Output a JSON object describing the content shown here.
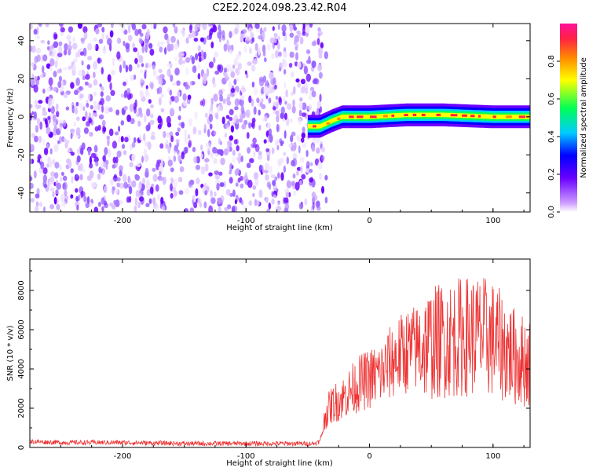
{
  "title": "C2E2.2024.098.23.42.R04",
  "colors": {
    "snr_line": "#ee3333",
    "colormap": [
      "#ffffff",
      "#cc99ff",
      "#6a00ff",
      "#0000ff",
      "#00ccff",
      "#00ff55",
      "#ffff00",
      "#ff8800",
      "#ff2244",
      "#ff1199"
    ]
  },
  "chart_data": [
    {
      "type": "heatmap",
      "xlabel": "Height of straight line (km)",
      "ylabel": "Frequency (Hz)",
      "xlim": [
        -275,
        130
      ],
      "ylim": [
        -50,
        49
      ],
      "x_ticks": [
        -200,
        -100,
        0,
        100
      ],
      "y_ticks": [
        -40,
        -20,
        0,
        20,
        40
      ],
      "noise_region_x": [
        -275,
        -40
      ],
      "signal_track": [
        {
          "x": -50,
          "y": -5
        },
        {
          "x": -40,
          "y": -5
        },
        {
          "x": -30,
          "y": -2
        },
        {
          "x": -22,
          "y": 0
        },
        {
          "x": 0,
          "y": 0
        },
        {
          "x": 30,
          "y": 1
        },
        {
          "x": 60,
          "y": 1
        },
        {
          "x": 100,
          "y": 0
        },
        {
          "x": 130,
          "y": 0
        }
      ],
      "colorbar": {
        "label": "Normalized spectral amplitude",
        "ticks": [
          "0.0",
          "0.2",
          "0.4",
          "0.6",
          "0.8"
        ],
        "range": [
          0,
          1
        ]
      }
    },
    {
      "type": "line",
      "xlabel": "Height of straight line (km)",
      "ylabel": "SNR (10 * v/v)",
      "xlim": [
        -275,
        130
      ],
      "ylim": [
        0,
        9600
      ],
      "x_ticks": [
        -200,
        -100,
        0,
        100
      ],
      "y_ticks": [
        0,
        2000,
        4000,
        6000,
        8000
      ],
      "series": [
        {
          "x": [
            -275,
            -250,
            -200,
            -150,
            -100,
            -60,
            -45,
            -40,
            -35,
            -30,
            -20,
            -10,
            0,
            10,
            20,
            30,
            40,
            50,
            60,
            70,
            80,
            90,
            100,
            110,
            120,
            130
          ],
          "values": [
            300,
            250,
            250,
            200,
            200,
            200,
            200,
            300,
            1800,
            2200,
            2600,
            3200,
            3500,
            3800,
            4500,
            4900,
            5100,
            5300,
            5500,
            5600,
            5700,
            5700,
            5500,
            5000,
            4500,
            4300
          ]
        }
      ]
    }
  ]
}
